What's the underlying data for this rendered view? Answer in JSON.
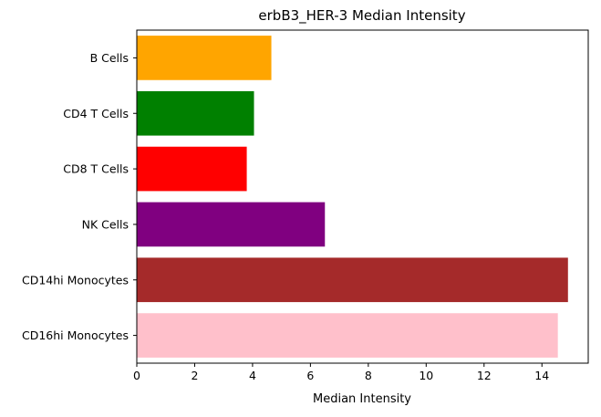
{
  "chart_data": {
    "type": "bar",
    "orientation": "horizontal",
    "title": "erbB3_HER-3 Median Intensity",
    "xlabel": "Median Intensity",
    "ylabel": "",
    "categories": [
      "B Cells",
      "CD4 T Cells",
      "CD8 T Cells",
      "NK Cells",
      "CD14hi Monocytes",
      "CD16hi Monocytes"
    ],
    "values": [
      4.65,
      4.05,
      3.8,
      6.5,
      14.9,
      14.55
    ],
    "colors": [
      "#ffa500",
      "#008000",
      "#ff0000",
      "#800080",
      "#a52a2a",
      "#ffc0cb"
    ],
    "xlim": [
      0,
      15.6
    ],
    "xticks": [
      0,
      2,
      4,
      6,
      8,
      10,
      12,
      14
    ],
    "grid": false,
    "legend": "none"
  }
}
